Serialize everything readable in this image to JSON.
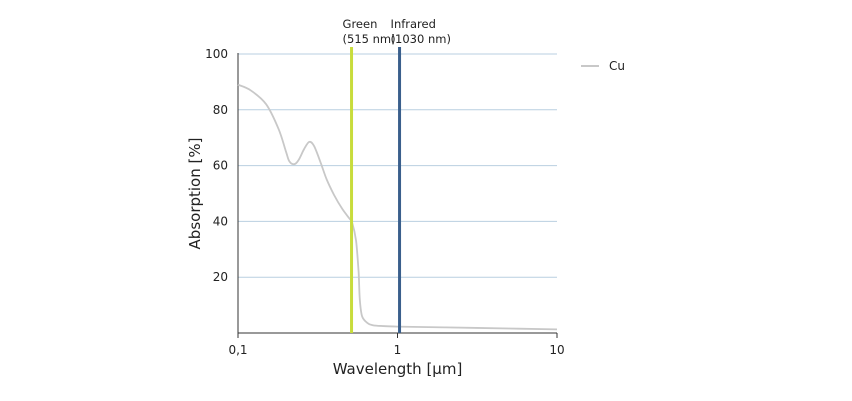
{
  "chart_data": {
    "type": "line",
    "xlabel": "Wavelength [µm]",
    "ylabel": "Absorption [%]",
    "xscale": "log",
    "xlim": [
      0.1,
      10
    ],
    "ylim": [
      0,
      100
    ],
    "x_ticks": [
      0.1,
      1,
      10
    ],
    "x_tick_labels": [
      "0,1",
      "1",
      "10"
    ],
    "y_ticks": [
      20,
      40,
      60,
      80,
      100
    ],
    "y_tick_labels": [
      "20",
      "40",
      "60",
      "80",
      "100"
    ],
    "grid": "horizontal",
    "legend_position": "top-right",
    "series": [
      {
        "name": "Cu",
        "color": "#c8c8c8",
        "x": [
          0.1,
          0.12,
          0.15,
          0.18,
          0.2,
          0.21,
          0.225,
          0.24,
          0.26,
          0.28,
          0.3,
          0.33,
          0.36,
          0.4,
          0.45,
          0.5,
          0.52,
          0.55,
          0.57,
          0.58,
          0.6,
          0.65,
          0.7,
          0.8,
          1.0,
          2.0,
          5.0,
          10.0
        ],
        "y": [
          89,
          87,
          82,
          73,
          65,
          61.5,
          60.5,
          62,
          66,
          68.5,
          67,
          61,
          55,
          49.5,
          44.5,
          41,
          39.5,
          33,
          22,
          12,
          6,
          3.5,
          2.8,
          2.5,
          2.3,
          2.0,
          1.6,
          1.3
        ]
      }
    ],
    "markers": [
      {
        "label_line1": "Green",
        "label_line2": "(515 nm)",
        "x": 0.515,
        "color": "#c8dc3c"
      },
      {
        "label_line1": "Infrared",
        "label_line2": "(1030 nm)",
        "x": 1.03,
        "color": "#3a5f8c"
      }
    ]
  }
}
